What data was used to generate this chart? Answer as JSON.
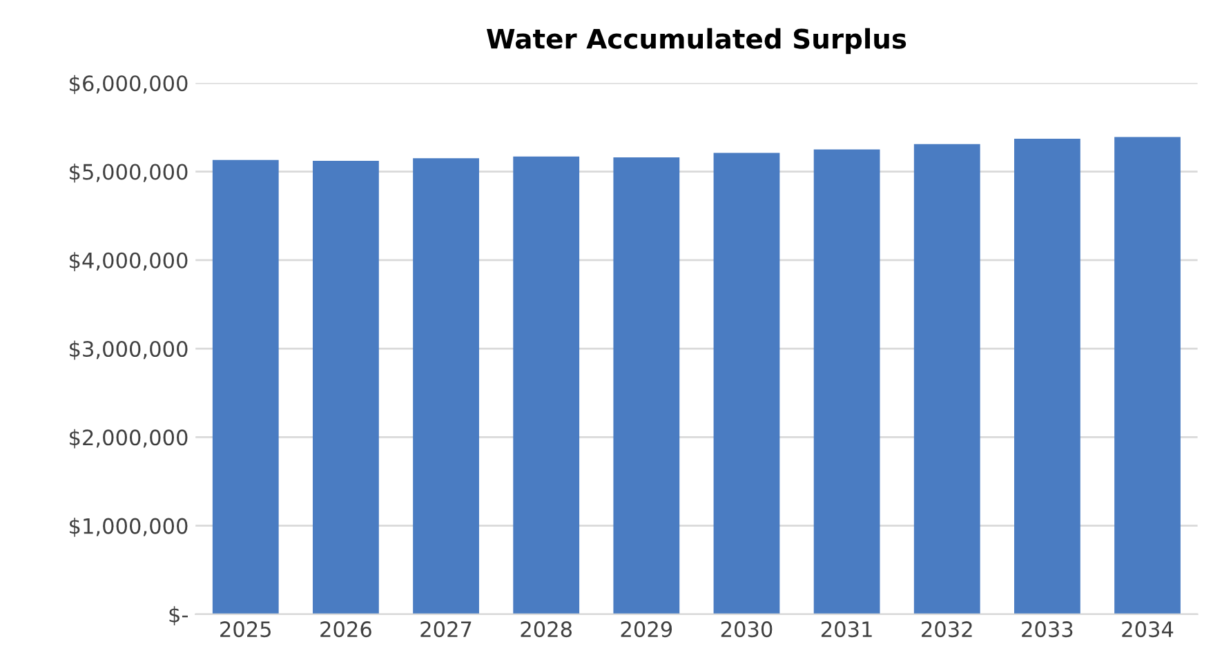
{
  "chart_data": {
    "type": "bar",
    "title": "Water Accumulated Surplus",
    "categories": [
      "2025",
      "2026",
      "2027",
      "2028",
      "2029",
      "2030",
      "2031",
      "2032",
      "2033",
      "2034"
    ],
    "values": [
      5130000,
      5120000,
      5150000,
      5170000,
      5160000,
      5210000,
      5250000,
      5310000,
      5370000,
      5390000
    ],
    "color": "#4a7cc2",
    "ylim": [
      0,
      6000000
    ],
    "yticks": [
      {
        "value": 0,
        "label": "$-"
      },
      {
        "value": 1000000,
        "label": "$1,000,000"
      },
      {
        "value": 2000000,
        "label": "$2,000,000"
      },
      {
        "value": 3000000,
        "label": "$3,000,000"
      },
      {
        "value": 4000000,
        "label": "$4,000,000"
      },
      {
        "value": 5000000,
        "label": "$5,000,000"
      },
      {
        "value": 6000000,
        "label": "$6,000,000"
      }
    ],
    "grid": "y"
  }
}
